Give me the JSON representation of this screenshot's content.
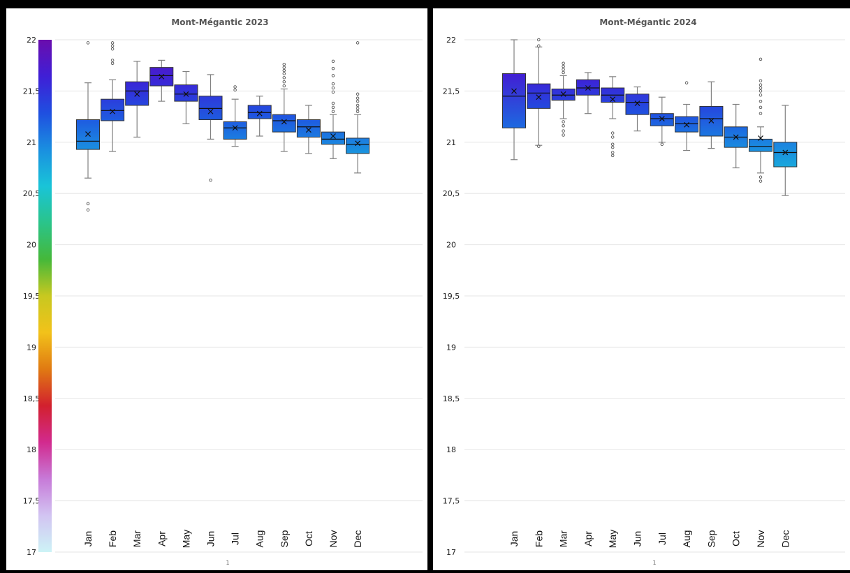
{
  "chart_data": [
    {
      "type": "box",
      "title": "Mont-Mégantic 2023",
      "footer": "1",
      "ylim": [
        17,
        22
      ],
      "y_ticks": [
        "17",
        "17,5",
        "18",
        "18,5",
        "19",
        "19,5",
        "20",
        "20,5",
        "21",
        "21,5",
        "22"
      ],
      "grid": true,
      "colorbar": true,
      "categories": [
        "Jan",
        "Feb",
        "Mar",
        "Apr",
        "May",
        "Jun",
        "Jul",
        "Aug",
        "Sep",
        "Oct",
        "Nov",
        "Dec"
      ],
      "boxes": [
        {
          "q1": 20.93,
          "median": 21.01,
          "q3": 21.22,
          "mean": 21.08,
          "whisker_low": 20.65,
          "whisker_high": 21.58,
          "outliers": [
            20.34,
            20.4,
            21.97
          ]
        },
        {
          "q1": 21.21,
          "median": 21.31,
          "q3": 21.42,
          "mean": 21.3,
          "whisker_low": 20.91,
          "whisker_high": 21.61,
          "outliers": [
            21.77,
            21.8,
            21.91,
            21.94,
            21.97
          ]
        },
        {
          "q1": 21.36,
          "median": 21.5,
          "q3": 21.59,
          "mean": 21.47,
          "whisker_low": 21.05,
          "whisker_high": 21.79,
          "outliers": []
        },
        {
          "q1": 21.55,
          "median": 21.65,
          "q3": 21.73,
          "mean": 21.64,
          "whisker_low": 21.4,
          "whisker_high": 21.8,
          "outliers": []
        },
        {
          "q1": 21.4,
          "median": 21.47,
          "q3": 21.56,
          "mean": 21.47,
          "whisker_low": 21.18,
          "whisker_high": 21.69,
          "outliers": []
        },
        {
          "q1": 21.22,
          "median": 21.33,
          "q3": 21.45,
          "mean": 21.3,
          "whisker_low": 21.03,
          "whisker_high": 21.66,
          "outliers": [
            20.63
          ]
        },
        {
          "q1": 21.03,
          "median": 21.14,
          "q3": 21.2,
          "mean": 21.14,
          "whisker_low": 20.96,
          "whisker_high": 21.42,
          "outliers": [
            21.51,
            21.54
          ]
        },
        {
          "q1": 21.23,
          "median": 21.29,
          "q3": 21.36,
          "mean": 21.28,
          "whisker_low": 21.06,
          "whisker_high": 21.45,
          "outliers": []
        },
        {
          "q1": 21.1,
          "median": 21.21,
          "q3": 21.27,
          "mean": 21.2,
          "whisker_low": 20.91,
          "whisker_high": 21.52,
          "outliers": [
            21.55,
            21.59,
            21.63,
            21.67,
            21.7,
            21.73,
            21.76
          ]
        },
        {
          "q1": 21.05,
          "median": 21.15,
          "q3": 21.22,
          "mean": 21.12,
          "whisker_low": 20.89,
          "whisker_high": 21.36,
          "outliers": []
        },
        {
          "q1": 20.98,
          "median": 21.03,
          "q3": 21.1,
          "mean": 21.06,
          "whisker_low": 20.84,
          "whisker_high": 21.27,
          "outliers": [
            21.3,
            21.34,
            21.38,
            21.49,
            21.53,
            21.57,
            21.65,
            21.72,
            21.79
          ]
        },
        {
          "q1": 20.89,
          "median": 20.98,
          "q3": 21.04,
          "mean": 20.99,
          "whisker_low": 20.7,
          "whisker_high": 21.27,
          "outliers": [
            21.3,
            21.33,
            21.36,
            21.4,
            21.43,
            21.47,
            21.97
          ]
        }
      ]
    },
    {
      "type": "box",
      "title": "Mont-Mégantic 2024",
      "footer": "1",
      "ylim": [
        17,
        22
      ],
      "y_ticks": [
        "17",
        "17,5",
        "18",
        "18,5",
        "19",
        "19,5",
        "20",
        "20,5",
        "21",
        "21,5",
        "22"
      ],
      "grid": true,
      "colorbar": false,
      "categories": [
        "Jan",
        "Feb",
        "Mar",
        "Apr",
        "May",
        "Jun",
        "Jul",
        "Aug",
        "Sep",
        "Oct",
        "Nov",
        "Dec"
      ],
      "boxes": [
        {
          "q1": 21.14,
          "median": 21.45,
          "q3": 21.67,
          "mean": 21.5,
          "whisker_low": 20.83,
          "whisker_high": 22.0,
          "outliers": []
        },
        {
          "q1": 21.33,
          "median": 21.48,
          "q3": 21.57,
          "mean": 21.44,
          "whisker_low": 20.97,
          "whisker_high": 21.93,
          "outliers": [
            20.96,
            21.94,
            22.0
          ]
        },
        {
          "q1": 21.41,
          "median": 21.46,
          "q3": 21.52,
          "mean": 21.47,
          "whisker_low": 21.23,
          "whisker_high": 21.65,
          "outliers": [
            21.07,
            21.11,
            21.16,
            21.2,
            21.68,
            21.71,
            21.74,
            21.77
          ]
        },
        {
          "q1": 21.46,
          "median": 21.53,
          "q3": 21.61,
          "mean": 21.53,
          "whisker_low": 21.28,
          "whisker_high": 21.68,
          "outliers": []
        },
        {
          "q1": 21.39,
          "median": 21.46,
          "q3": 21.53,
          "mean": 21.42,
          "whisker_low": 21.23,
          "whisker_high": 21.64,
          "outliers": [
            20.87,
            20.9,
            20.95,
            20.98,
            21.05,
            21.09
          ]
        },
        {
          "q1": 21.27,
          "median": 21.39,
          "q3": 21.47,
          "mean": 21.38,
          "whisker_low": 21.11,
          "whisker_high": 21.54,
          "outliers": []
        },
        {
          "q1": 21.16,
          "median": 21.23,
          "q3": 21.28,
          "mean": 21.23,
          "whisker_low": 21.0,
          "whisker_high": 21.44,
          "outliers": [
            20.98
          ]
        },
        {
          "q1": 21.1,
          "median": 21.18,
          "q3": 21.25,
          "mean": 21.17,
          "whisker_low": 20.92,
          "whisker_high": 21.37,
          "outliers": [
            21.58
          ]
        },
        {
          "q1": 21.06,
          "median": 21.23,
          "q3": 21.35,
          "mean": 21.21,
          "whisker_low": 20.94,
          "whisker_high": 21.59,
          "outliers": []
        },
        {
          "q1": 20.95,
          "median": 21.05,
          "q3": 21.15,
          "mean": 21.05,
          "whisker_low": 20.75,
          "whisker_high": 21.37,
          "outliers": []
        },
        {
          "q1": 20.91,
          "median": 20.96,
          "q3": 21.03,
          "mean": 21.04,
          "whisker_low": 20.7,
          "whisker_high": 21.15,
          "outliers": [
            20.62,
            20.66,
            21.28,
            21.34,
            21.4,
            21.46,
            21.5,
            21.53,
            21.56,
            21.6,
            21.81
          ]
        },
        {
          "q1": 20.76,
          "median": 20.9,
          "q3": 21.0,
          "mean": 20.9,
          "whisker_low": 20.48,
          "whisker_high": 21.36,
          "outliers": []
        }
      ]
    }
  ],
  "colors": {
    "grid": "#e6e6e6",
    "box_edge": "#333333",
    "whisker": "#808080",
    "colormap": [
      "#6a0dad",
      "#3f1fd6",
      "#1f4fe0",
      "#1a8fe0",
      "#19c4d8",
      "#2ac48a",
      "#45b83a",
      "#c8c820",
      "#f2c21a",
      "#e07a12",
      "#d2202e",
      "#d22a8e",
      "#c77ad8",
      "#d2c4f2",
      "#cdf3f6"
    ]
  }
}
